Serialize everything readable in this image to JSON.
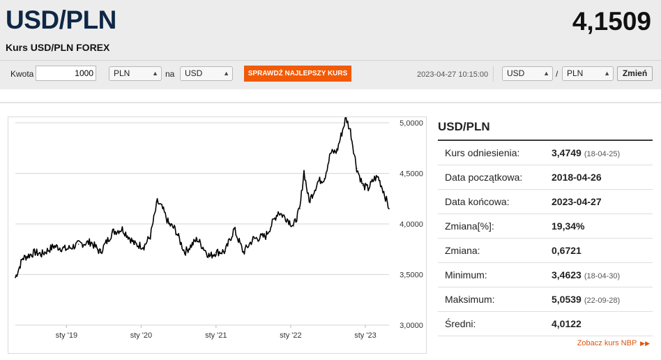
{
  "header": {
    "title": "USD/PLN",
    "rate": "4,1509",
    "subtitle": "Kurs USD/PLN FOREX"
  },
  "converter": {
    "amount_label": "Kwota",
    "amount_value": "1000",
    "from_currency": "PLN",
    "to_label": "na",
    "to_currency": "USD",
    "best_rate_button": "SPRAWDŹ NAJLEPSZY KURS"
  },
  "pair_selector": {
    "timestamp": "2023-04-27 10:15:00",
    "base": "USD",
    "separator": "/",
    "quote": "PLN",
    "change_button": "Zmień"
  },
  "stats": {
    "title": "USD/PLN",
    "rows": [
      {
        "label": "Kurs odniesienia:",
        "value": "3,4749",
        "date": "(18-04-25)"
      },
      {
        "label": "Data początkowa:",
        "value": "2018-04-26",
        "date": ""
      },
      {
        "label": "Data końcowa:",
        "value": "2023-04-27",
        "date": ""
      },
      {
        "label": "Zmiana[%]:",
        "value": "19,34%",
        "date": ""
      },
      {
        "label": "Zmiana:",
        "value": "0,6721",
        "date": ""
      },
      {
        "label": "Minimum:",
        "value": "3,4623",
        "date": "(18-04-30)"
      },
      {
        "label": "Maksimum:",
        "value": "5,0539",
        "date": "(22-09-28)"
      },
      {
        "label": "Średni:",
        "value": "4,0122",
        "date": ""
      }
    ],
    "nbp_link": "Zobacz kurs NBP",
    "nbp_link_icon": "double-chevron-right-icon"
  },
  "colors": {
    "accent": "#f25a05",
    "title": "#0f2745",
    "header_bg": "#ececec",
    "line": "#000000"
  },
  "chart_data": {
    "type": "line",
    "x": [
      "2018-04-26",
      "2018-06-01",
      "2018-08-01",
      "2018-09-01",
      "2018-11-01",
      "2019-01-01",
      "2019-03-01",
      "2019-05-01",
      "2019-06-15",
      "2019-08-15",
      "2019-10-01",
      "2019-12-01",
      "2020-01-15",
      "2020-02-15",
      "2020-03-20",
      "2020-04-15",
      "2020-05-15",
      "2020-06-15",
      "2020-08-01",
      "2020-10-01",
      "2020-12-01",
      "2021-01-01",
      "2021-02-15",
      "2021-03-31",
      "2021-05-15",
      "2021-07-01",
      "2021-09-01",
      "2021-11-01",
      "2021-12-15",
      "2022-01-15",
      "2022-02-15",
      "2022-03-07",
      "2022-04-01",
      "2022-05-15",
      "2022-06-15",
      "2022-07-15",
      "2022-08-15",
      "2022-09-28",
      "2022-10-20",
      "2022-11-20",
      "2022-12-20",
      "2023-01-15",
      "2023-02-15",
      "2023-03-05",
      "2023-04-01",
      "2023-04-27"
    ],
    "y": [
      3.47,
      3.66,
      3.72,
      3.7,
      3.78,
      3.75,
      3.8,
      3.82,
      3.72,
      3.92,
      3.95,
      3.8,
      3.78,
      3.88,
      4.22,
      4.15,
      4.0,
      3.95,
      3.72,
      3.85,
      3.68,
      3.72,
      3.73,
      3.95,
      3.72,
      3.85,
      3.88,
      4.12,
      4.05,
      3.98,
      4.15,
      4.52,
      4.22,
      4.42,
      4.45,
      4.7,
      4.72,
      5.05,
      4.92,
      4.55,
      4.38,
      4.35,
      4.45,
      4.46,
      4.32,
      4.15
    ],
    "y_ticks": [
      "3,0000",
      "3,5000",
      "4,0000",
      "4,5000",
      "5,0000"
    ],
    "y_tick_values": [
      3.0,
      3.5,
      4.0,
      4.5,
      5.0
    ],
    "x_ticks": [
      "sty '19",
      "sty '20",
      "sty '21",
      "sty '22",
      "sty '23"
    ],
    "x_tick_dates": [
      "2019-01-01",
      "2020-01-01",
      "2021-01-01",
      "2022-01-01",
      "2023-01-01"
    ],
    "x_range": [
      "2018-04-26",
      "2023-04-27"
    ],
    "ylim": [
      3.0,
      5.0
    ],
    "grid": "horizontal"
  }
}
